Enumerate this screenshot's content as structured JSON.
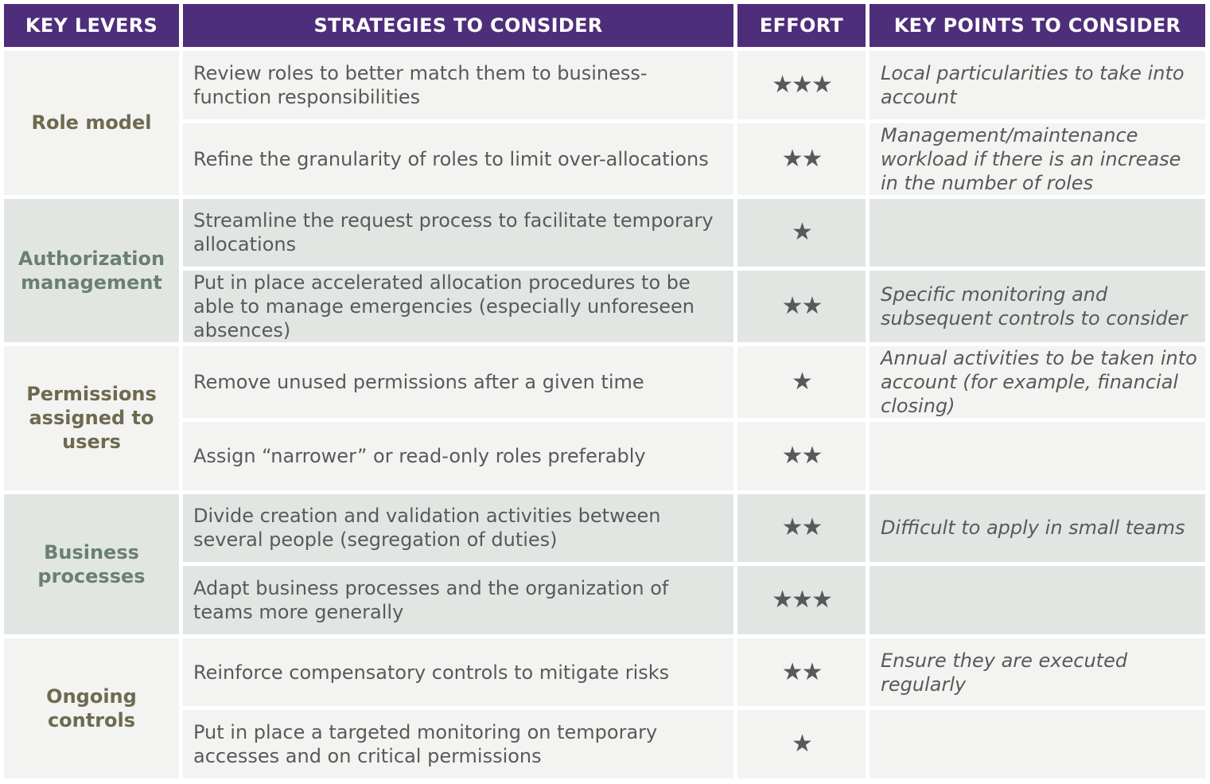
{
  "headers": {
    "levers": "KEY LEVERS",
    "strategies": "STRATEGIES TO CONSIDER",
    "effort": "EFFORT",
    "points": "KEY POINTS TO CONSIDER"
  },
  "groups": [
    {
      "lever": "Role model",
      "rows": [
        {
          "strategy": "Review roles to better match them to business-function responsibilities",
          "effort": "★★★",
          "effort_level": 3,
          "point": "Local particularities to take into account"
        },
        {
          "strategy": "Refine the granularity of roles to limit over-allocations",
          "effort": "★★",
          "effort_level": 2,
          "point": "Management/maintenance workload if there is an increase in the number of roles"
        }
      ]
    },
    {
      "lever": "Authorization management",
      "rows": [
        {
          "strategy": "Streamline the request process to facilitate temporary allocations",
          "effort": "★",
          "effort_level": 1,
          "point": ""
        },
        {
          "strategy": "Put in place accelerated allocation procedures to be able to manage emergencies (especially unforeseen absences)",
          "effort": "★★",
          "effort_level": 2,
          "point": "Specific monitoring and subsequent controls to consider"
        }
      ]
    },
    {
      "lever": "Permissions assigned to users",
      "rows": [
        {
          "strategy": "Remove unused permissions after a given time",
          "effort": "★",
          "effort_level": 1,
          "point": "Annual activities to be taken into account (for example, financial closing)"
        },
        {
          "strategy": "Assign “narrower” or read-only roles preferably",
          "effort": "★★",
          "effort_level": 2,
          "point": ""
        }
      ]
    },
    {
      "lever": "Business processes",
      "rows": [
        {
          "strategy": "Divide creation and validation activities between several people (segregation of duties)",
          "effort": "★★",
          "effort_level": 2,
          "point": "Difficult to apply in small teams"
        },
        {
          "strategy": "Adapt business processes and the organization of teams more generally",
          "effort": "★★★",
          "effort_level": 3,
          "point": ""
        }
      ]
    },
    {
      "lever": "Ongoing controls",
      "rows": [
        {
          "strategy": "Reinforce compensatory controls to mitigate risks",
          "effort": "★★",
          "effort_level": 2,
          "point": "Ensure they are executed regularly"
        },
        {
          "strategy": "Put in place a targeted monitoring on temporary accesses and on critical permissions",
          "effort": "★",
          "effort_level": 1,
          "point": ""
        }
      ]
    }
  ],
  "colors": {
    "header_bg": "#4e2e7a",
    "row_light": "#f3f3f1",
    "row_teal": "#e2e6e3",
    "lever_olive": "#6e6a50",
    "lever_teal": "#6a7f75",
    "text": "#595959"
  },
  "icons": {
    "effort": "star-icon"
  }
}
